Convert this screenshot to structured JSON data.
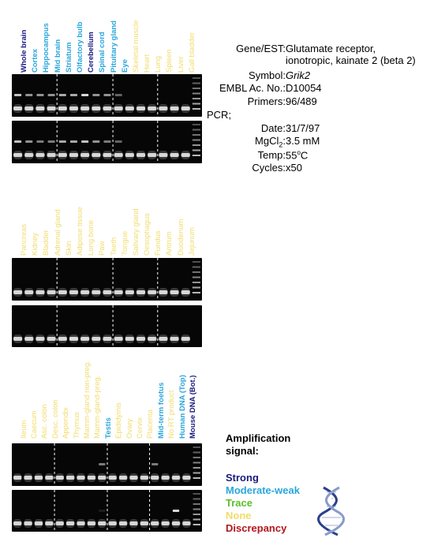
{
  "colors": {
    "strong": "#1a1a80",
    "moderate_weak": "#2aa6dc",
    "trace": "#5bbf2a",
    "none": "#f2dc6a",
    "discrepancy": "#b3161b"
  },
  "panels": [
    {
      "lanes": [
        {
          "label": "Whole brain",
          "signal": "strong"
        },
        {
          "label": "Cortex",
          "signal": "moderate_weak"
        },
        {
          "label": "Hippocampus",
          "signal": "moderate_weak"
        },
        {
          "label": "Mid brain",
          "signal": "moderate_weak"
        },
        {
          "label": "Striatum",
          "signal": "moderate_weak"
        },
        {
          "label": "Olfactory bulb",
          "signal": "moderate_weak"
        },
        {
          "label": "Cerebellum",
          "signal": "strong"
        },
        {
          "label": "Spinal cord",
          "signal": "moderate_weak"
        },
        {
          "label": "Pituitary gland",
          "signal": "moderate_weak"
        },
        {
          "label": "Eye",
          "signal": "moderate_weak"
        },
        {
          "label": "Skeletal muscle",
          "signal": "none"
        },
        {
          "label": "Heart",
          "signal": "none"
        },
        {
          "label": "Lung",
          "signal": "none"
        },
        {
          "label": "Spleen",
          "signal": "none"
        },
        {
          "label": "Liver",
          "signal": "none"
        },
        {
          "label": "Gall bladder",
          "signal": "none"
        }
      ],
      "gel_top_bands": [
        0.8,
        0.6,
        0.6,
        0.6,
        0.7,
        0.7,
        0.9,
        0.6,
        0.6,
        0.4,
        0,
        0,
        0,
        0,
        0,
        0
      ],
      "gel_bottom_bands": [
        0.8,
        0.6,
        0.5,
        0.5,
        0.7,
        0.7,
        0.8,
        0.6,
        0.5,
        0.4,
        0,
        0,
        0,
        0,
        0,
        0
      ],
      "top_marker": true,
      "bottom_marker": true
    },
    {
      "lanes": [
        {
          "label": "Pancreas",
          "signal": "none"
        },
        {
          "label": "Kidney",
          "signal": "none"
        },
        {
          "label": "Bladder",
          "signal": "none"
        },
        {
          "label": "Adrenal gland",
          "signal": "none"
        },
        {
          "label": "Skin",
          "signal": "none"
        },
        {
          "label": "Adipose tissue",
          "signal": "none"
        },
        {
          "label": "Long bone",
          "signal": "none"
        },
        {
          "label": "Paw",
          "signal": "none"
        },
        {
          "label": "Teeth",
          "signal": "none"
        },
        {
          "label": "Tongue",
          "signal": "none"
        },
        {
          "label": "Salivary gland",
          "signal": "none"
        },
        {
          "label": "Oesophagus",
          "signal": "none"
        },
        {
          "label": "Fundus",
          "signal": "none"
        },
        {
          "label": "Antrum",
          "signal": "none"
        },
        {
          "label": "Duodenum",
          "signal": "none"
        },
        {
          "label": "Jejunum",
          "signal": "none"
        }
      ],
      "gel_top_bands": [
        0,
        0,
        0,
        0,
        0,
        0,
        0,
        0,
        0,
        0,
        0,
        0,
        0,
        0,
        0,
        0
      ],
      "gel_bottom_bands": [
        0,
        0,
        0,
        0,
        0,
        0,
        0,
        0,
        0,
        0,
        0,
        0,
        0,
        0,
        0,
        0
      ],
      "top_marker": true,
      "bottom_marker": false
    },
    {
      "lanes": [
        {
          "label": "Ileum",
          "signal": "none"
        },
        {
          "label": "Caecum",
          "signal": "none"
        },
        {
          "label": "Asc. colon",
          "signal": "none"
        },
        {
          "label": "Desc. colon",
          "signal": "none"
        },
        {
          "label": "Appendix",
          "signal": "none"
        },
        {
          "label": "Thymus",
          "signal": "none"
        },
        {
          "label": "Mamm-gland non-preg.",
          "signal": "none"
        },
        {
          "label": "Mamm-gland-preg.",
          "signal": "none"
        },
        {
          "label": "Testis",
          "signal": "moderate_weak"
        },
        {
          "label": "Epididymis",
          "signal": "none"
        },
        {
          "label": "Ovary",
          "signal": "none"
        },
        {
          "label": "Cervix",
          "signal": "none"
        },
        {
          "label": "Placenta",
          "signal": "none"
        },
        {
          "label": "Mid-term foetus",
          "signal": "moderate_weak"
        },
        {
          "label": "No RT product",
          "signal": "none"
        },
        {
          "label": "Human DNA (Top)",
          "signal": "moderate_weak"
        },
        {
          "label": "Mouse DNA (Bot.)",
          "signal": "strong"
        }
      ],
      "gel_top_bands": [
        0,
        0,
        0,
        0,
        0,
        0,
        0,
        0,
        0.5,
        0,
        0,
        0,
        0,
        0.5,
        0,
        0,
        0
      ],
      "gel_bottom_bands": [
        0,
        0,
        0,
        0,
        0,
        0,
        0,
        0,
        0.1,
        0,
        0,
        0,
        0,
        0,
        0,
        0.9,
        0
      ],
      "top_marker": true,
      "bottom_marker": true
    }
  ],
  "info": {
    "rows": [
      {
        "key": "Gene/EST:",
        "value": "Glutamate receptor,"
      },
      {
        "key": "",
        "value": "ionotropic, kainate 2 (beta 2)"
      },
      {
        "key": "Symbol:",
        "value": "Grik2"
      },
      {
        "key": "EMBL Ac. No.:",
        "value": "D10054"
      },
      {
        "key": "Primers:",
        "value": "96/489"
      },
      {
        "key": "PCR;",
        "value": ""
      },
      {
        "key": "Date:",
        "value": "31/7/97"
      },
      {
        "key": "MgCl",
        "value": "3.5 mM"
      },
      {
        "key": "Temp:",
        "value": "55"
      },
      {
        "key": "Cycles:",
        "value": "x50"
      }
    ],
    "mgcl_sub": "2",
    "mgcl_colon": ":",
    "temp_sup": "o",
    "temp_unit": "C"
  },
  "legend": {
    "title_line1": "Amplification",
    "title_line2": "signal:",
    "items": [
      {
        "label": "Strong",
        "signal": "strong"
      },
      {
        "label": "Moderate-weak",
        "signal": "moderate_weak"
      },
      {
        "label": "Trace",
        "signal": "trace"
      },
      {
        "label": "None",
        "signal": "none"
      },
      {
        "label": "Discrepancy",
        "signal": "discrepancy"
      }
    ]
  }
}
